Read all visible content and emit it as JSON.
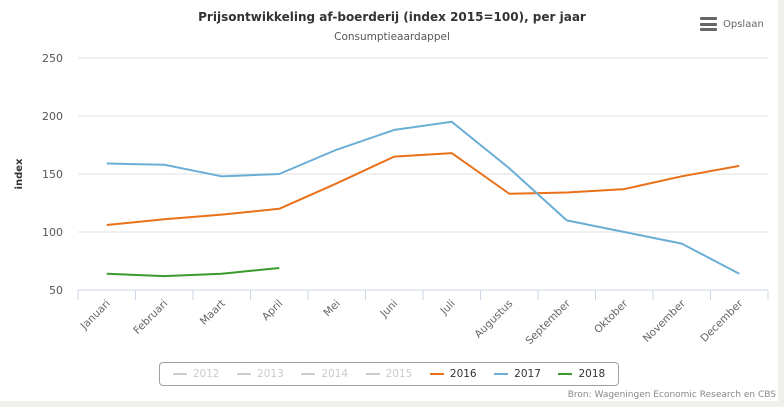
{
  "header": {
    "menu_label": "Opslaan",
    "menu_icon": "hamburger-menu-icon"
  },
  "credits": "Bron: Wageningen Economic Research en CBS",
  "legend": [
    {
      "name": "2012",
      "color": "#cccccc",
      "active": false
    },
    {
      "name": "2013",
      "color": "#cccccc",
      "active": false
    },
    {
      "name": "2014",
      "color": "#cccccc",
      "active": false
    },
    {
      "name": "2015",
      "color": "#cccccc",
      "active": false
    },
    {
      "name": "2016",
      "color": "#e8711a",
      "active": true
    },
    {
      "name": "2017",
      "color": "#6aaed6",
      "active": true
    },
    {
      "name": "2018",
      "color": "#3a9a2e",
      "active": true
    }
  ],
  "chart_data": {
    "type": "line",
    "title": "Prijsontwikkeling af-boerderij (index 2015=100), per jaar",
    "subtitle": "Consumptieaardappel",
    "xlabel": "",
    "ylabel": "index",
    "ylim": [
      50,
      250
    ],
    "yticks": [
      50,
      100,
      150,
      200,
      250
    ],
    "grid": true,
    "legend_position": "bottom",
    "categories": [
      "Januari",
      "Februari",
      "Maart",
      "April",
      "Mei",
      "Juni",
      "Juli",
      "Augustus",
      "September",
      "Oktober",
      "November",
      "December"
    ],
    "series": [
      {
        "name": "2016",
        "color": "#e8711a",
        "values": [
          106,
          111,
          115,
          120,
          142,
          165,
          168,
          133,
          134,
          137,
          148,
          157
        ]
      },
      {
        "name": "2017",
        "color": "#6aaed6",
        "values": [
          159,
          158,
          148,
          150,
          171,
          188,
          195,
          155,
          110,
          100,
          90,
          64
        ]
      },
      {
        "name": "2018",
        "color": "#3a9a2e",
        "values": [
          64,
          62,
          64,
          69
        ]
      }
    ]
  }
}
